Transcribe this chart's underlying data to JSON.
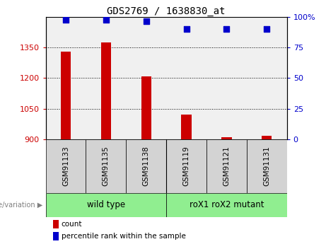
{
  "title": "GDS2769 / 1638830_at",
  "samples": [
    "GSM91133",
    "GSM91135",
    "GSM91138",
    "GSM91119",
    "GSM91121",
    "GSM91131"
  ],
  "counts": [
    1330,
    1375,
    1210,
    1020,
    910,
    915
  ],
  "percentile_ranks": [
    97.5,
    97.5,
    96.5,
    90,
    90,
    90
  ],
  "ylim_left": [
    900,
    1500
  ],
  "ylim_right": [
    0,
    100
  ],
  "yticks_left": [
    900,
    1050,
    1200,
    1350
  ],
  "yticks_right": [
    0,
    25,
    50,
    75,
    100
  ],
  "bar_color": "#cc0000",
  "dot_color": "#0000cc",
  "left_axis_color": "#cc0000",
  "right_axis_color": "#0000cc",
  "background_color": "#f0f0f0",
  "legend_count_label": "count",
  "legend_percentile_label": "percentile rank within the sample",
  "group1_label": "wild type",
  "group2_label": "roX1 roX2 mutant",
  "group_color": "#90ee90",
  "sample_box_color": "#d3d3d3"
}
